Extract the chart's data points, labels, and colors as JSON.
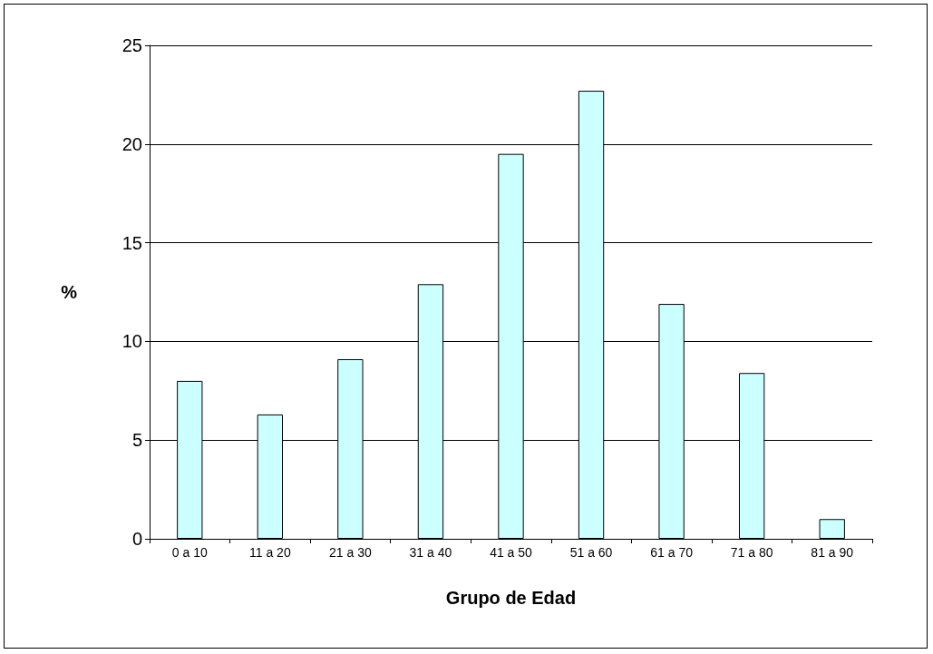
{
  "chart_data": {
    "type": "bar",
    "xlabel": "Grupo de Edad",
    "ylabel": "%",
    "categories": [
      "0 a 10",
      "11 a 20",
      "21 a 30",
      "31 a 40",
      "41 a 50",
      "51 a 60",
      "61 a 70",
      "71 a 80",
      "81 a 90"
    ],
    "values": [
      8.0,
      6.3,
      9.1,
      12.9,
      19.5,
      22.7,
      11.9,
      8.4,
      1.0
    ],
    "color": "#ccffff",
    "ylim": [
      0,
      25
    ],
    "yticks": [
      0,
      5,
      10,
      15,
      20,
      25
    ],
    "grid": "y"
  }
}
